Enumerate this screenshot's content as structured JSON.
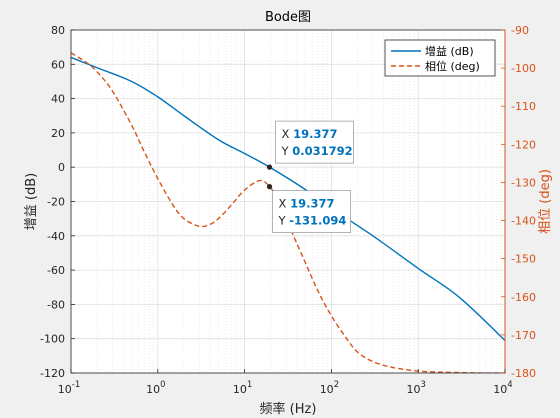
{
  "chart_data": {
    "type": "line",
    "title": "Bode图",
    "xlabel": "频率 (Hz)",
    "ylabel": "增益 (dB)",
    "ylabel_right": "相位 (deg)",
    "xscale": "log",
    "xlim": [
      0.1,
      10000
    ],
    "ylim": [
      -120,
      80
    ],
    "ylim_right": [
      -180,
      -90
    ],
    "xticks": [
      0.1,
      1,
      10,
      100,
      1000,
      10000
    ],
    "yticks": [
      80,
      60,
      40,
      20,
      0,
      -20,
      -40,
      -60,
      -80,
      -100,
      -120
    ],
    "yticks_right": [
      -90,
      -100,
      -110,
      -120,
      -130,
      -140,
      -150,
      -160,
      -170,
      -180
    ],
    "grid": true,
    "legend_position": "top-right",
    "series": [
      {
        "name": "增益 (dB)",
        "axis": "left",
        "color": "#0072bd",
        "style": "solid",
        "x": [
          0.1,
          0.2,
          0.5,
          1,
          2,
          5,
          10,
          19.377,
          50,
          100,
          300,
          1000,
          3000,
          10000
        ],
        "y": [
          64,
          58,
          50,
          41,
          30,
          16,
          8,
          0.031792,
          -13,
          -24,
          -40,
          -59,
          -76,
          -101
        ]
      },
      {
        "name": "相位 (deg)",
        "axis": "right",
        "color": "#d95319",
        "style": "dashed",
        "x": [
          0.1,
          0.15,
          0.2,
          0.3,
          0.5,
          0.7,
          1,
          1.5,
          2,
          3,
          4,
          5,
          7,
          10,
          15,
          19.377,
          25,
          35,
          50,
          70,
          100,
          150,
          200,
          300,
          500,
          1000,
          2000,
          5000,
          10000
        ],
        "y": [
          -96,
          -98.5,
          -101,
          -106,
          -115,
          -122,
          -129,
          -136,
          -139.5,
          -141.5,
          -141,
          -139.5,
          -136,
          -132,
          -129.5,
          -131.094,
          -135,
          -143,
          -151,
          -158.5,
          -165,
          -171,
          -174.5,
          -177,
          -178.5,
          -179.5,
          -179.8,
          -180,
          -180
        ]
      }
    ],
    "datatips": [
      {
        "series": 0,
        "x": 19.377,
        "y": 0.031792,
        "x_text": "19.377",
        "y_text": "0.031792",
        "x_label": "X",
        "y_label": "Y"
      },
      {
        "series": 1,
        "x": 19.377,
        "y": -131.094,
        "x_text": "19.377",
        "y_text": "-131.094",
        "x_label": "X",
        "y_label": "Y"
      }
    ]
  }
}
